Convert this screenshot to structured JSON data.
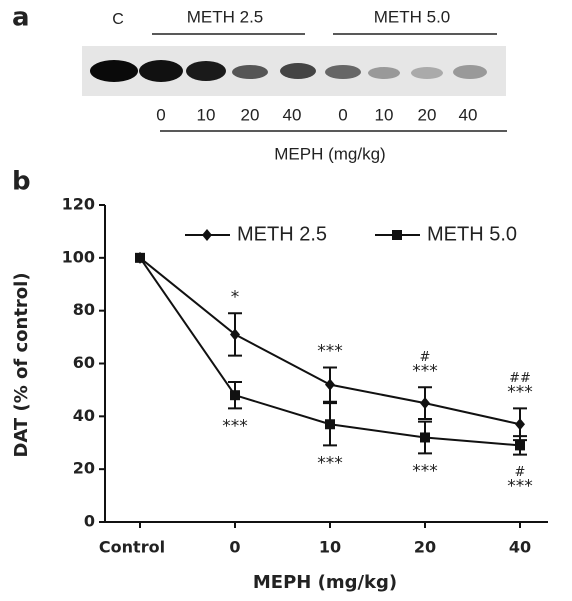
{
  "panel_a": {
    "label": "a",
    "control_lane": "C",
    "groups": [
      "METH 2.5",
      "METH 5.0"
    ],
    "doses": [
      "0",
      "10",
      "20",
      "40",
      "0",
      "10",
      "20",
      "40"
    ],
    "dose_label": "MEPH (mg/kg)"
  },
  "chart_data": {
    "type": "line",
    "panel_label": "b",
    "categories": [
      "Control",
      "0",
      "10",
      "20",
      "40"
    ],
    "x_label": "MEPH (mg/kg)",
    "y_label": "DAT (% of control)",
    "ylim": [
      0,
      120
    ],
    "yticks": [
      0,
      20,
      40,
      60,
      80,
      100,
      120
    ],
    "legend": "top-right",
    "series": [
      {
        "name": "METH 2.5",
        "color": "#111111",
        "marker": "diamond",
        "values": [
          100,
          71,
          52,
          45,
          37
        ],
        "errors": [
          null,
          8,
          6.5,
          6,
          6
        ],
        "annotations": [
          null,
          [
            "*"
          ],
          [
            "***"
          ],
          [
            "#",
            "***"
          ],
          [
            "##",
            "***"
          ]
        ]
      },
      {
        "name": "METH 5.0",
        "color": "#111111",
        "marker": "square",
        "values": [
          100,
          48,
          37,
          32,
          29
        ],
        "errors": [
          null,
          5,
          8,
          6,
          3.5
        ],
        "annotations": [
          null,
          [
            "***"
          ],
          [
            "***"
          ],
          [
            "***"
          ],
          [
            "#",
            "***"
          ]
        ]
      }
    ]
  }
}
